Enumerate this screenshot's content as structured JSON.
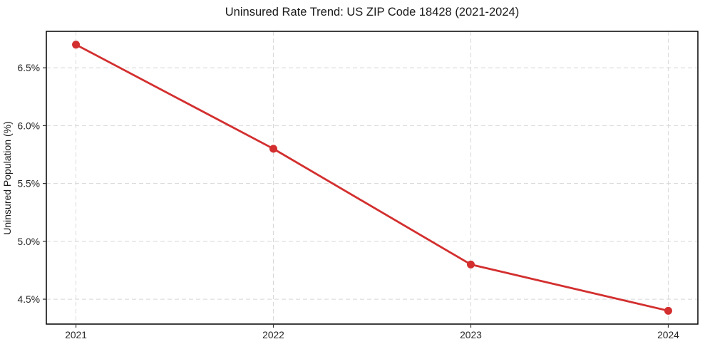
{
  "page": {
    "background_color": "#ffffff"
  },
  "chart_data": {
    "type": "line",
    "title": "Uninsured Rate Trend: US ZIP Code 18428 (2021-2024)",
    "xlabel": "",
    "ylabel": "Uninsured Population (%)",
    "x": [
      2021,
      2022,
      2023,
      2024
    ],
    "series": [
      {
        "name": "uninsured-rate",
        "values": [
          6.7,
          5.8,
          4.8,
          4.4
        ],
        "color": "#d32f2f",
        "marker": "circle",
        "line_width": 2.8,
        "marker_radius": 5.5
      }
    ],
    "xticks": {
      "values": [
        2021,
        2022,
        2023,
        2024
      ],
      "labels": [
        "2021",
        "2022",
        "2023",
        "2024"
      ]
    },
    "yticks": {
      "values": [
        4.5,
        5.0,
        5.5,
        6.0,
        6.5
      ],
      "labels": [
        "4.5%",
        "5.0%",
        "5.5%",
        "6.0%",
        "6.5%"
      ]
    },
    "xlim": [
      2020.85,
      2024.15
    ],
    "ylim": [
      4.285,
      6.815
    ],
    "grid": true,
    "grid_style": "dashed",
    "grid_color": "#d8d8d8",
    "frame_color": "#000000",
    "tick_color": "#333333",
    "text_color": "#262626",
    "legend": "none"
  }
}
